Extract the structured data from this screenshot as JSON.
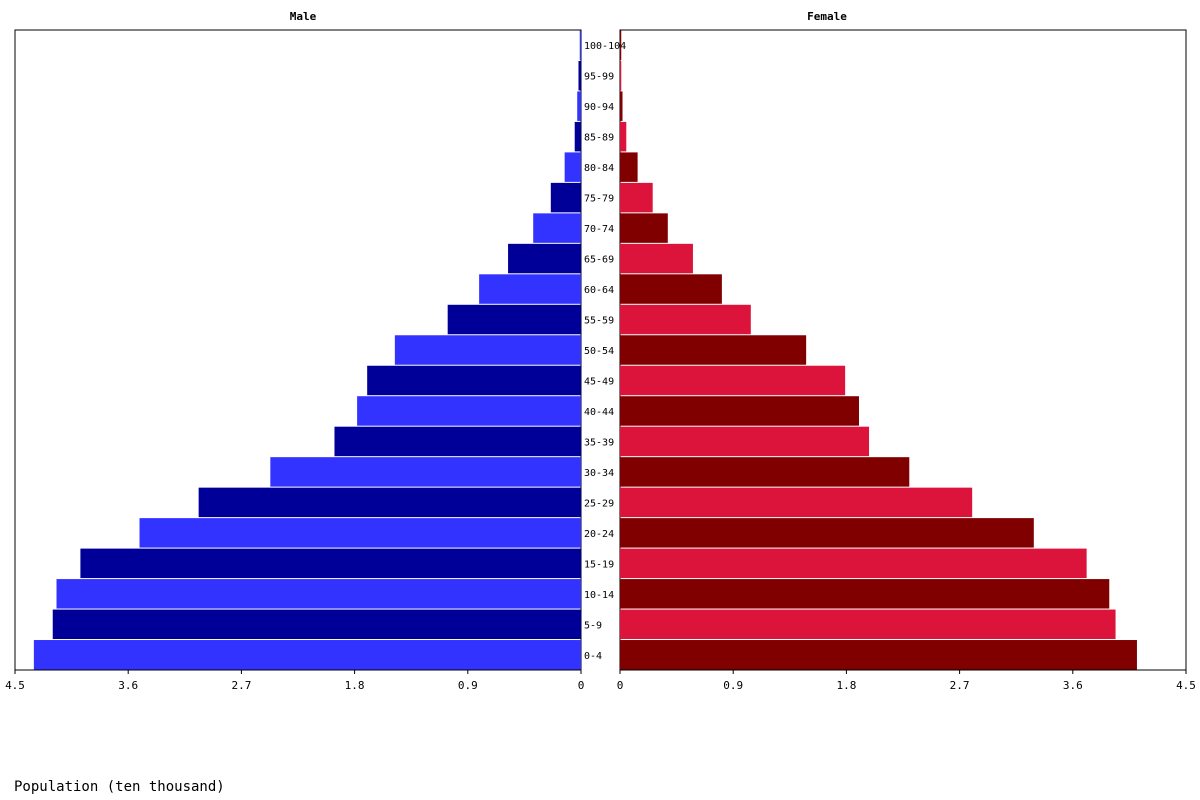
{
  "chart_data": {
    "type": "bar",
    "orientation": "horizontal",
    "layout": "population-pyramid",
    "xlabel": "Population (ten thousand)",
    "xlim": [
      0,
      4.5
    ],
    "x_ticks": [
      "4.5",
      "3.6",
      "2.7",
      "1.8",
      "0.9",
      "0"
    ],
    "x_ticks_right": [
      "0",
      "0.9",
      "1.8",
      "2.7",
      "3.6",
      "4.5"
    ],
    "grid": false,
    "categories": [
      "0-4",
      "5-9",
      "10-14",
      "15-19",
      "20-24",
      "25-29",
      "30-34",
      "35-39",
      "40-44",
      "45-49",
      "50-54",
      "55-59",
      "60-64",
      "65-69",
      "70-74",
      "75-79",
      "80-84",
      "85-89",
      "90-94",
      "95-99",
      "100-104"
    ],
    "series": [
      {
        "name": "Male",
        "colors": [
          "#3333ff",
          "#000099"
        ],
        "values": [
          4.35,
          4.2,
          4.17,
          3.98,
          3.51,
          3.04,
          2.47,
          1.96,
          1.78,
          1.7,
          1.48,
          1.06,
          0.81,
          0.58,
          0.38,
          0.24,
          0.13,
          0.05,
          0.03,
          0.02,
          0.01
        ]
      },
      {
        "name": "Female",
        "colors": [
          "#800000",
          "#dc143c"
        ],
        "values": [
          4.11,
          3.94,
          3.89,
          3.71,
          3.29,
          2.8,
          2.3,
          1.98,
          1.9,
          1.79,
          1.48,
          1.04,
          0.81,
          0.58,
          0.38,
          0.26,
          0.14,
          0.05,
          0.02,
          0.01,
          0.01
        ]
      }
    ]
  }
}
